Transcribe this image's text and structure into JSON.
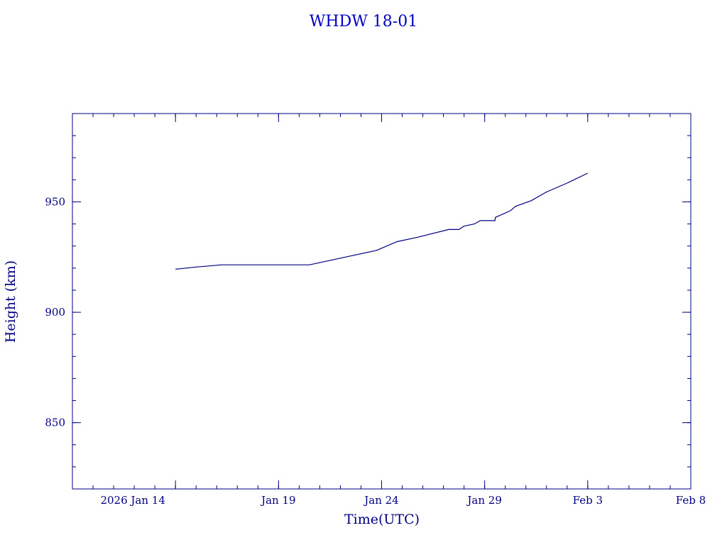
{
  "chart_data": {
    "type": "line",
    "title": "WHDW 18-01",
    "xlabel": "Time(UTC)",
    "ylabel": "Height (km)",
    "xlim": [
      "2026-01-09",
      "2026-02-08"
    ],
    "ylim": [
      820,
      990
    ],
    "grid": false,
    "colors": {
      "line": "#000080",
      "title": "#0000c0",
      "axis": "#000080"
    },
    "x_ticks": [
      {
        "date": "2026-01-14",
        "label": "2026 Jan 14"
      },
      {
        "date": "2026-01-19",
        "label": "Jan 19"
      },
      {
        "date": "2026-01-24",
        "label": "Jan 24"
      },
      {
        "date": "2026-01-29",
        "label": "Jan 29"
      },
      {
        "date": "2026-02-03",
        "label": "Feb  3"
      },
      {
        "date": "2026-02-08",
        "label": "Feb  8"
      }
    ],
    "y_ticks": [
      {
        "value": 850,
        "label": "850"
      },
      {
        "value": 900,
        "label": "900"
      },
      {
        "value": 950,
        "label": "950"
      }
    ],
    "series": [
      {
        "x": [
          "2026-01-14 00:00",
          "2026-01-15 00:00",
          "2026-01-16 06:00",
          "2026-01-17 12:00",
          "2026-01-19 00:00",
          "2026-01-20 12:00",
          "2026-01-21 12:00",
          "2026-01-22 12:00",
          "2026-01-23 18:00",
          "2026-01-24 18:00",
          "2026-01-25 18:00",
          "2026-01-27 06:00",
          "2026-01-27 18:00",
          "2026-01-28 00:00",
          "2026-01-28 12:00",
          "2026-01-28 19:00",
          "2026-01-29 12:00",
          "2026-01-29 12:30",
          "2026-01-30 06:00",
          "2026-01-30 12:00",
          "2026-01-31 06:00",
          "2026-02-01 00:00",
          "2026-02-02 00:00",
          "2026-02-03 00:00"
        ],
        "y": [
          919.5,
          920.5,
          921.5,
          921.5,
          921.5,
          921.5,
          923.5,
          925.5,
          928,
          932,
          934,
          937.5,
          937.5,
          939,
          940,
          941.5,
          941.5,
          943,
          946,
          948,
          950.5,
          954.5,
          958.5,
          963
        ]
      }
    ]
  }
}
